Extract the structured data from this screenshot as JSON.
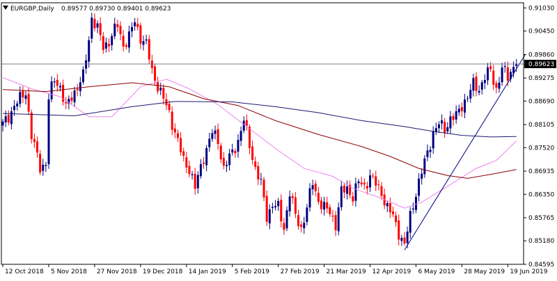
{
  "header": {
    "symbol_label": "EURGBP,Daily",
    "ohlc_label": "0.89577 0.89730 0.89401 0.89623",
    "triangle_icon": "triangle-down-icon"
  },
  "colors": {
    "bull": "#000080",
    "bear": "#ff0000",
    "ma_fast": "#ee82ee",
    "ma_mid": "#8b0000",
    "ma_slow": "#191970",
    "trendline": "#000080",
    "price_line": "#708090",
    "axis": "#000000",
    "background": "#ffffff"
  },
  "chart_data": {
    "type": "candlestick",
    "instrument": "EURGBP",
    "timeframe": "Daily",
    "current_price": 0.89623,
    "current_price_label": "0.89623",
    "ylim": [
      0.8459,
      0.9116
    ],
    "y_ticks": [
      {
        "value": 0.9103,
        "label": "0.91030"
      },
      {
        "value": 0.9045,
        "label": "0.90450"
      },
      {
        "value": 0.8986,
        "label": "0.89860"
      },
      {
        "value": 0.8927,
        "label": "0.89275"
      },
      {
        "value": 0.8869,
        "label": "0.88690"
      },
      {
        "value": 0.881,
        "label": "0.88105"
      },
      {
        "value": 0.8752,
        "label": "0.87520"
      },
      {
        "value": 0.8693,
        "label": "0.86935"
      },
      {
        "value": 0.8635,
        "label": "0.86350"
      },
      {
        "value": 0.8576,
        "label": "0.85765"
      },
      {
        "value": 0.8518,
        "label": "0.85180"
      },
      {
        "value": 0.8459,
        "label": "0.84595"
      }
    ],
    "x_ticks": [
      {
        "index": 0,
        "label": "12 Oct 2018"
      },
      {
        "index": 16,
        "label": "5 Nov 2018"
      },
      {
        "index": 32,
        "label": "27 Nov 2018"
      },
      {
        "index": 48,
        "label": "19 Dec 2018"
      },
      {
        "index": 64,
        "label": "14 Jan 2019"
      },
      {
        "index": 80,
        "label": "5 Feb 2019"
      },
      {
        "index": 96,
        "label": "27 Feb 2019"
      },
      {
        "index": 112,
        "label": "21 Mar 2019"
      },
      {
        "index": 128,
        "label": "12 Apr 2019"
      },
      {
        "index": 144,
        "label": "6 May 2019"
      },
      {
        "index": 160,
        "label": "28 May 2019"
      },
      {
        "index": 176,
        "label": "19 Jun 2019"
      }
    ],
    "anchors": [
      [
        0,
        0.881
      ],
      [
        4,
        0.8855
      ],
      [
        8,
        0.8895
      ],
      [
        10,
        0.878
      ],
      [
        13,
        0.8705
      ],
      [
        15,
        0.8712
      ],
      [
        16,
        0.8875
      ],
      [
        18,
        0.8925
      ],
      [
        20,
        0.8905
      ],
      [
        22,
        0.885
      ],
      [
        24,
        0.8882
      ],
      [
        26,
        0.8905
      ],
      [
        28,
        0.893
      ],
      [
        30,
        0.9025
      ],
      [
        31,
        0.908
      ],
      [
        33,
        0.905
      ],
      [
        35,
        0.9005
      ],
      [
        37,
        0.902
      ],
      [
        40,
        0.906
      ],
      [
        42,
        0.901
      ],
      [
        44,
        0.903
      ],
      [
        46,
        0.907
      ],
      [
        48,
        0.903
      ],
      [
        50,
        0.901
      ],
      [
        52,
        0.8945
      ],
      [
        55,
        0.889
      ],
      [
        58,
        0.884
      ],
      [
        60,
        0.879
      ],
      [
        63,
        0.872
      ],
      [
        65,
        0.87
      ],
      [
        67,
        0.865
      ],
      [
        70,
        0.873
      ],
      [
        73,
        0.879
      ],
      [
        75,
        0.877
      ],
      [
        77,
        0.87
      ],
      [
        80,
        0.874
      ],
      [
        82,
        0.877
      ],
      [
        84,
        0.882
      ],
      [
        86,
        0.876
      ],
      [
        88,
        0.87
      ],
      [
        90,
        0.866
      ],
      [
        92,
        0.858
      ],
      [
        94,
        0.861
      ],
      [
        96,
        0.86
      ],
      [
        98,
        0.855
      ],
      [
        100,
        0.864
      ],
      [
        102,
        0.858
      ],
      [
        104,
        0.855
      ],
      [
        106,
        0.86
      ],
      [
        108,
        0.8665
      ],
      [
        110,
        0.862
      ],
      [
        112,
        0.86
      ],
      [
        114,
        0.859
      ],
      [
        116,
        0.856
      ],
      [
        118,
        0.864
      ],
      [
        120,
        0.865
      ],
      [
        122,
        0.863
      ],
      [
        124,
        0.8665
      ],
      [
        126,
        0.8655
      ],
      [
        128,
        0.868
      ],
      [
        130,
        0.866
      ],
      [
        132,
        0.864
      ],
      [
        134,
        0.86
      ],
      [
        136,
        0.858
      ],
      [
        138,
        0.854
      ],
      [
        140,
        0.8505
      ],
      [
        142,
        0.858
      ],
      [
        144,
        0.864
      ],
      [
        146,
        0.869
      ],
      [
        148,
        0.874
      ],
      [
        150,
        0.879
      ],
      [
        152,
        0.881
      ],
      [
        154,
        0.88
      ],
      [
        156,
        0.8825
      ],
      [
        158,
        0.883
      ],
      [
        160,
        0.886
      ],
      [
        162,
        0.888
      ],
      [
        164,
        0.891
      ],
      [
        166,
        0.89
      ],
      [
        168,
        0.893
      ],
      [
        170,
        0.8945
      ],
      [
        172,
        0.89
      ],
      [
        174,
        0.895
      ],
      [
        176,
        0.893
      ],
      [
        178,
        0.8958
      ],
      [
        179,
        0.8962
      ]
    ],
    "bar_count": 180,
    "moving_averages": [
      {
        "kind": "fast",
        "points": [
          [
            0,
            0.8928
          ],
          [
            10,
            0.89
          ],
          [
            20,
            0.888
          ],
          [
            30,
            0.883
          ],
          [
            38,
            0.883
          ],
          [
            48,
            0.8905
          ],
          [
            57,
            0.8924
          ],
          [
            65,
            0.89
          ],
          [
            75,
            0.886
          ],
          [
            85,
            0.8805
          ],
          [
            95,
            0.875
          ],
          [
            105,
            0.87
          ],
          [
            115,
            0.868
          ],
          [
            122,
            0.865
          ],
          [
            132,
            0.8625
          ],
          [
            140,
            0.86
          ],
          [
            146,
            0.8615
          ],
          [
            155,
            0.8655
          ],
          [
            165,
            0.87
          ],
          [
            172,
            0.872
          ],
          [
            179,
            0.8769
          ]
        ]
      },
      {
        "kind": "mid",
        "points": [
          [
            0,
            0.8898
          ],
          [
            15,
            0.8893
          ],
          [
            30,
            0.8905
          ],
          [
            45,
            0.8915
          ],
          [
            58,
            0.8905
          ],
          [
            70,
            0.8875
          ],
          [
            82,
            0.8858
          ],
          [
            95,
            0.882
          ],
          [
            110,
            0.8785
          ],
          [
            125,
            0.8755
          ],
          [
            135,
            0.873
          ],
          [
            145,
            0.87
          ],
          [
            155,
            0.8682
          ],
          [
            162,
            0.8675
          ],
          [
            170,
            0.8685
          ],
          [
            179,
            0.8697
          ]
        ]
      },
      {
        "kind": "slow",
        "points": [
          [
            0,
            0.8838
          ],
          [
            25,
            0.8832
          ],
          [
            45,
            0.8855
          ],
          [
            60,
            0.8868
          ],
          [
            80,
            0.8867
          ],
          [
            95,
            0.8855
          ],
          [
            110,
            0.884
          ],
          [
            125,
            0.882
          ],
          [
            140,
            0.8805
          ],
          [
            150,
            0.8793
          ],
          [
            160,
            0.8783
          ],
          [
            170,
            0.8779
          ],
          [
            179,
            0.878
          ]
        ]
      }
    ],
    "trendline": {
      "from": [
        140,
        0.8495
      ],
      "to": [
        182,
        0.8985
      ]
    }
  }
}
